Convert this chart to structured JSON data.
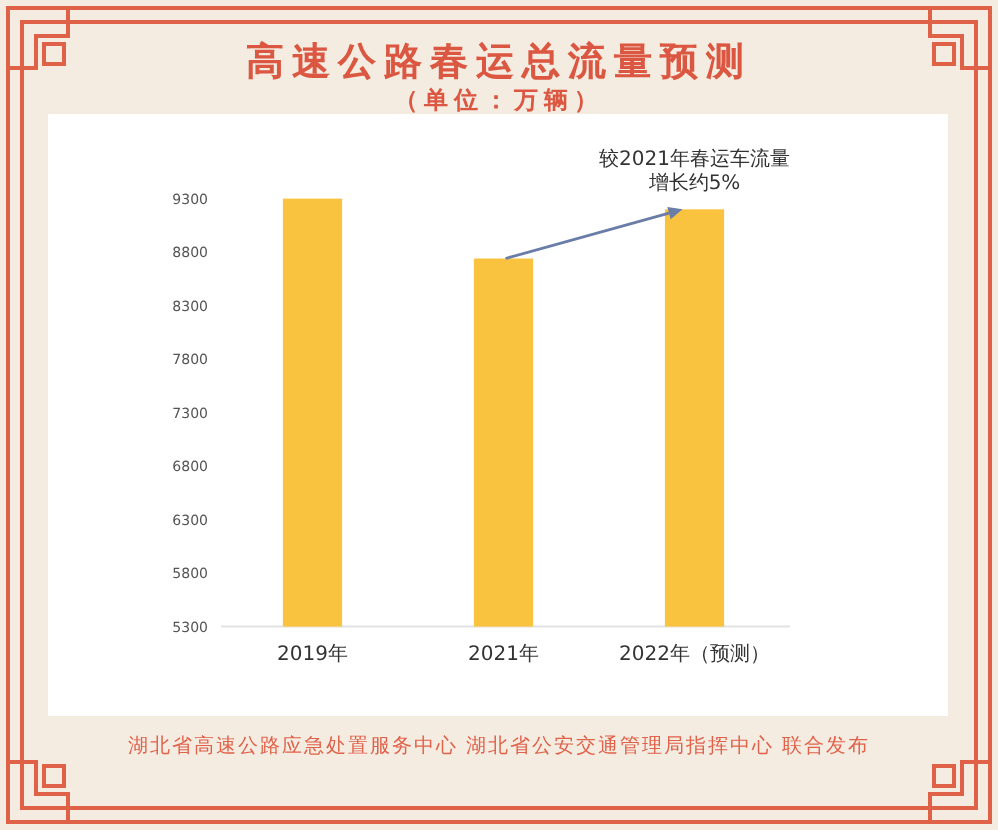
{
  "chart_data": {
    "type": "bar",
    "title": "高速公路春运总流量预测",
    "subtitle": "（单位：万辆）",
    "categories": [
      "2019年",
      "2021年",
      "2022年（预测）"
    ],
    "values": [
      9300,
      8740,
      9200
    ],
    "color": "#f9c33f",
    "ylim": [
      5300,
      9300
    ],
    "yticks": [
      5300,
      5800,
      6300,
      6800,
      7300,
      7800,
      8300,
      8800,
      9300
    ],
    "annotations": [
      {
        "text": "较2021年春运车流量增长约5%",
        "x": "2022年（预测）",
        "y": 9200
      },
      "湖北省高速公路应急处置服务中心 湖北省公安交通管理局指挥中心 联合发布"
    ]
  }
}
